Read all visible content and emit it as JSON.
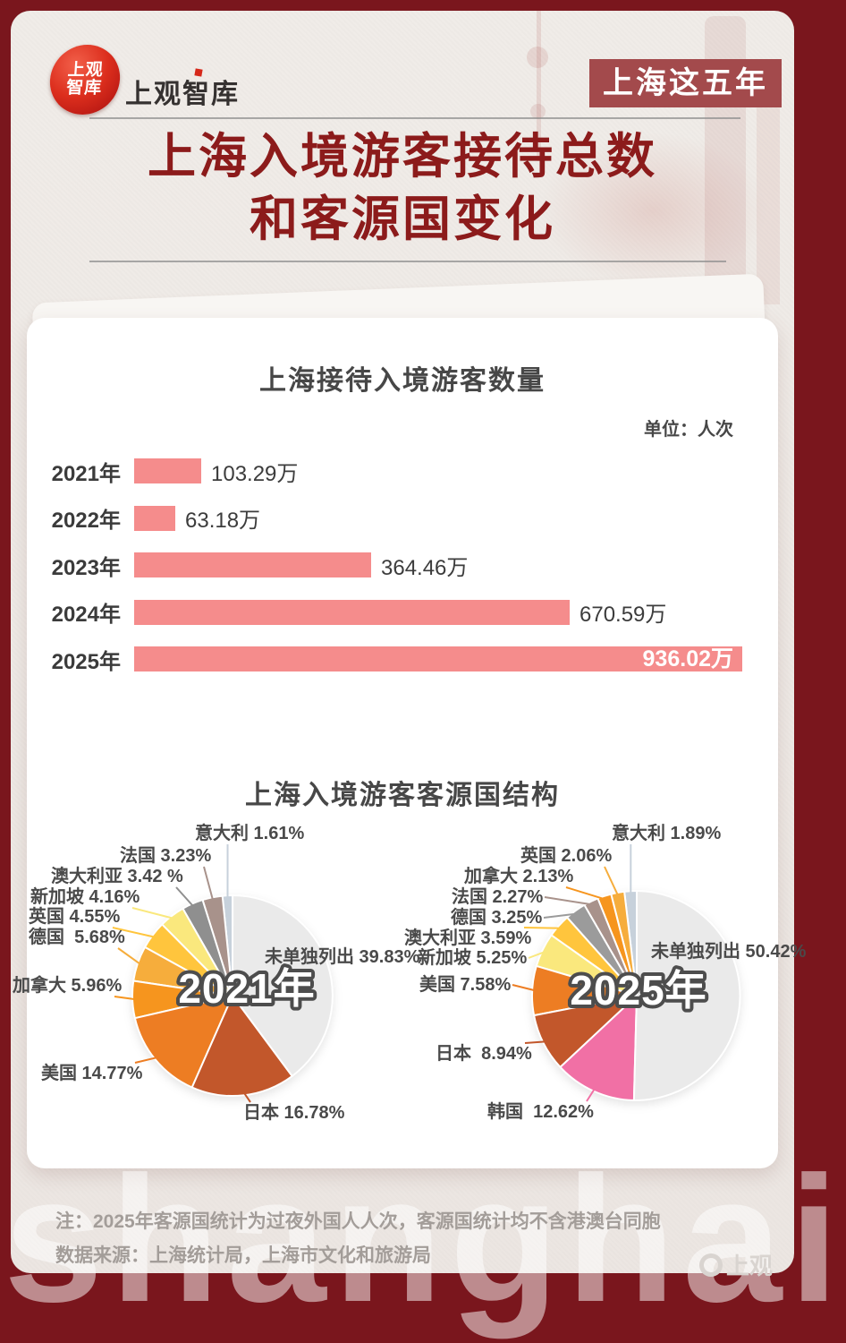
{
  "header": {
    "logo_circle_line1": "上观",
    "logo_circle_line2": "智库",
    "wordmark": "上观智库",
    "badge": "上海这五年"
  },
  "title": {
    "line1": "上海入境游客接待总数",
    "line2": "和客源国变化"
  },
  "pie_section": {
    "title": "上海入境游客客源国结构"
  },
  "chart_data": [
    {
      "type": "bar",
      "orientation": "horizontal",
      "title": "上海接待入境游客数量",
      "unit_label": "单位：人次",
      "bar_color": "#F58C8C",
      "max_value": 936.02,
      "categories": [
        "2021年",
        "2022年",
        "2023年",
        "2024年",
        "2025年"
      ],
      "values": [
        103.29,
        63.18,
        364.46,
        670.59,
        936.02
      ],
      "value_labels": [
        "103.29万",
        "63.18万",
        "364.46万",
        "670.59万",
        "936.02万"
      ],
      "label_inside": [
        false,
        false,
        false,
        false,
        true
      ]
    },
    {
      "type": "pie",
      "title": "上海入境游客客源国结构",
      "center_label": "2021年",
      "slices": [
        {
          "name": "意大利",
          "label": "意大利 1.61%",
          "value": 1.61,
          "color": "#C7D1DB"
        },
        {
          "name": "法国",
          "label": "法国 3.23%",
          "value": 3.23,
          "color": "#A8928B"
        },
        {
          "name": "澳大利亚",
          "label": "澳大利亚 3.42 %",
          "value": 3.42,
          "color": "#8F8F8F"
        },
        {
          "name": "新加坡",
          "label": "新加坡 4.16%",
          "value": 4.16,
          "color": "#FAE87D"
        },
        {
          "name": "英国",
          "label": "英国 4.55%",
          "value": 4.55,
          "color": "#FFC53D"
        },
        {
          "name": "德国",
          "label": "德国  5.68%",
          "value": 5.68,
          "color": "#F6AD3C"
        },
        {
          "name": "加拿大",
          "label": "加拿大 5.96%",
          "value": 5.96,
          "color": "#F6951E"
        },
        {
          "name": "美国",
          "label": "美国 14.77%",
          "value": 14.77,
          "color": "#ED7D23"
        },
        {
          "name": "日本",
          "label": "日本 16.78%",
          "value": 16.78,
          "color": "#C2572B"
        },
        {
          "name": "未单独列出",
          "label": "未单独列出 39.83%",
          "value": 39.83,
          "color": "#EAEAEA",
          "no_line": true
        }
      ]
    },
    {
      "type": "pie",
      "title": "上海入境游客客源国结构",
      "center_label": "2025年",
      "slices": [
        {
          "name": "意大利",
          "label": "意大利 1.89%",
          "value": 1.89,
          "color": "#C7D1DB"
        },
        {
          "name": "英国",
          "label": "英国 2.06%",
          "value": 2.06,
          "color": "#F6AD3C"
        },
        {
          "name": "加拿大",
          "label": "加拿大 2.13%",
          "value": 2.13,
          "color": "#F6951E"
        },
        {
          "name": "法国",
          "label": "法国 2.27%",
          "value": 2.27,
          "color": "#A8928B"
        },
        {
          "name": "德国",
          "label": "德国 3.25%",
          "value": 3.25,
          "color": "#9B9B9B"
        },
        {
          "name": "澳大利亚",
          "label": "澳大利亚 3.59%",
          "value": 3.59,
          "color": "#FFC53D"
        },
        {
          "name": "新加坡",
          "label": "新加坡 5.25%",
          "value": 5.25,
          "color": "#FAE87D"
        },
        {
          "name": "美国",
          "label": "美国 7.58%",
          "value": 7.58,
          "color": "#ED7D23"
        },
        {
          "name": "日本",
          "label": "日本  8.94%",
          "value": 8.94,
          "color": "#C2572B"
        },
        {
          "name": "韩国",
          "label": "韩国  12.62%",
          "value": 12.62,
          "color": "#F170A5"
        },
        {
          "name": "未单独列出",
          "label": "未单独列出 50.42%",
          "value": 50.42,
          "color": "#EAEAEA",
          "no_line": true
        }
      ]
    }
  ],
  "footer": {
    "note": "注：2025年客源国统计为过夜外国人人次，客源国统计均不含港澳台同胞",
    "source": "数据来源：上海统计局，上海市文化和旅游局",
    "watermark": "上观",
    "ghost_text": "shanghai"
  }
}
